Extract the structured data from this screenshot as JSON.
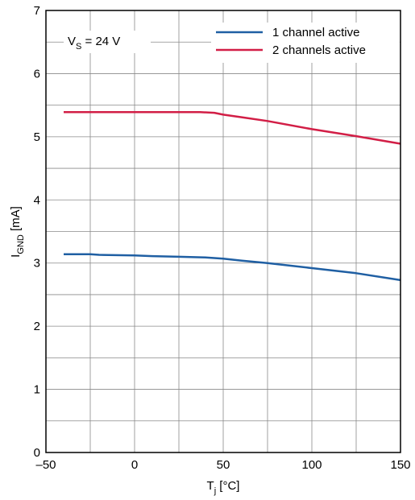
{
  "chart_data": {
    "type": "line",
    "xlabel": {
      "main": "T",
      "sub": "j",
      "unit": " [°C]"
    },
    "ylabel": {
      "main": "I",
      "sub": "GND",
      "unit": " [mA]"
    },
    "xlim": [
      -50,
      150
    ],
    "ylim": [
      0,
      7
    ],
    "x_ticks": [
      -50,
      0,
      50,
      100,
      150
    ],
    "x_tick_labels": [
      "–50",
      "0",
      "50",
      "100",
      "150"
    ],
    "y_ticks": [
      0,
      1,
      2,
      3,
      4,
      5,
      6,
      7
    ],
    "y_tick_labels": [
      "0",
      "1",
      "2",
      "3",
      "4",
      "5",
      "6",
      "7"
    ],
    "grid": true,
    "grid_x_step": 25,
    "grid_y_step": 0.5,
    "legend_position": "top-right",
    "annotation": {
      "main": "V",
      "sub": "S",
      "rest": " = 24 V"
    },
    "series": [
      {
        "name": "1 channel active",
        "color": "#1f5fa3",
        "x": [
          -40,
          -25,
          -20,
          0,
          10,
          25,
          40,
          50,
          60,
          75,
          100,
          125,
          150
        ],
        "y": [
          3.14,
          3.14,
          3.13,
          3.12,
          3.11,
          3.1,
          3.09,
          3.07,
          3.04,
          3.0,
          2.92,
          2.84,
          2.73
        ]
      },
      {
        "name": "2 channels active",
        "color": "#d21e46",
        "x": [
          -40,
          -25,
          0,
          25,
          37,
          45,
          50,
          60,
          75,
          100,
          125,
          150
        ],
        "y": [
          5.39,
          5.39,
          5.39,
          5.39,
          5.39,
          5.38,
          5.35,
          5.31,
          5.25,
          5.12,
          5.01,
          4.89
        ]
      }
    ]
  }
}
